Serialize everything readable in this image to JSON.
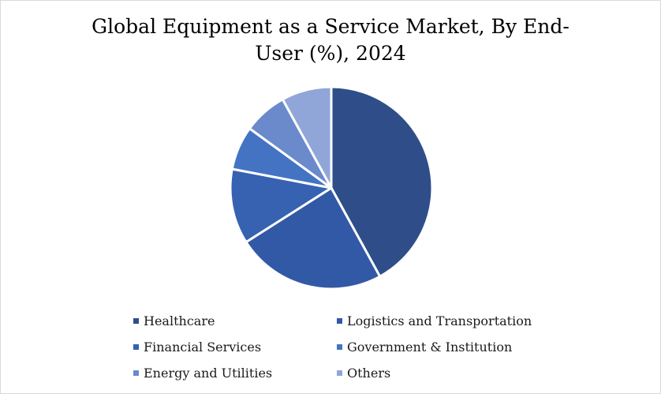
{
  "chart_data": {
    "type": "pie",
    "title": "Global Equipment as a Service Market, By End-User (%), 2024",
    "categories": [
      "Healthcare",
      "Logistics and Transportation",
      "Financial Services",
      "Government & Institution",
      "Energy and Utilities",
      "Others"
    ],
    "values": [
      42,
      24,
      12,
      7,
      7,
      8
    ],
    "unit": "%",
    "colors": [
      "#2f4e89",
      "#3259a5",
      "#3662b1",
      "#4473c4",
      "#6a8acc",
      "#91a6d8"
    ],
    "legend_position": "bottom"
  }
}
